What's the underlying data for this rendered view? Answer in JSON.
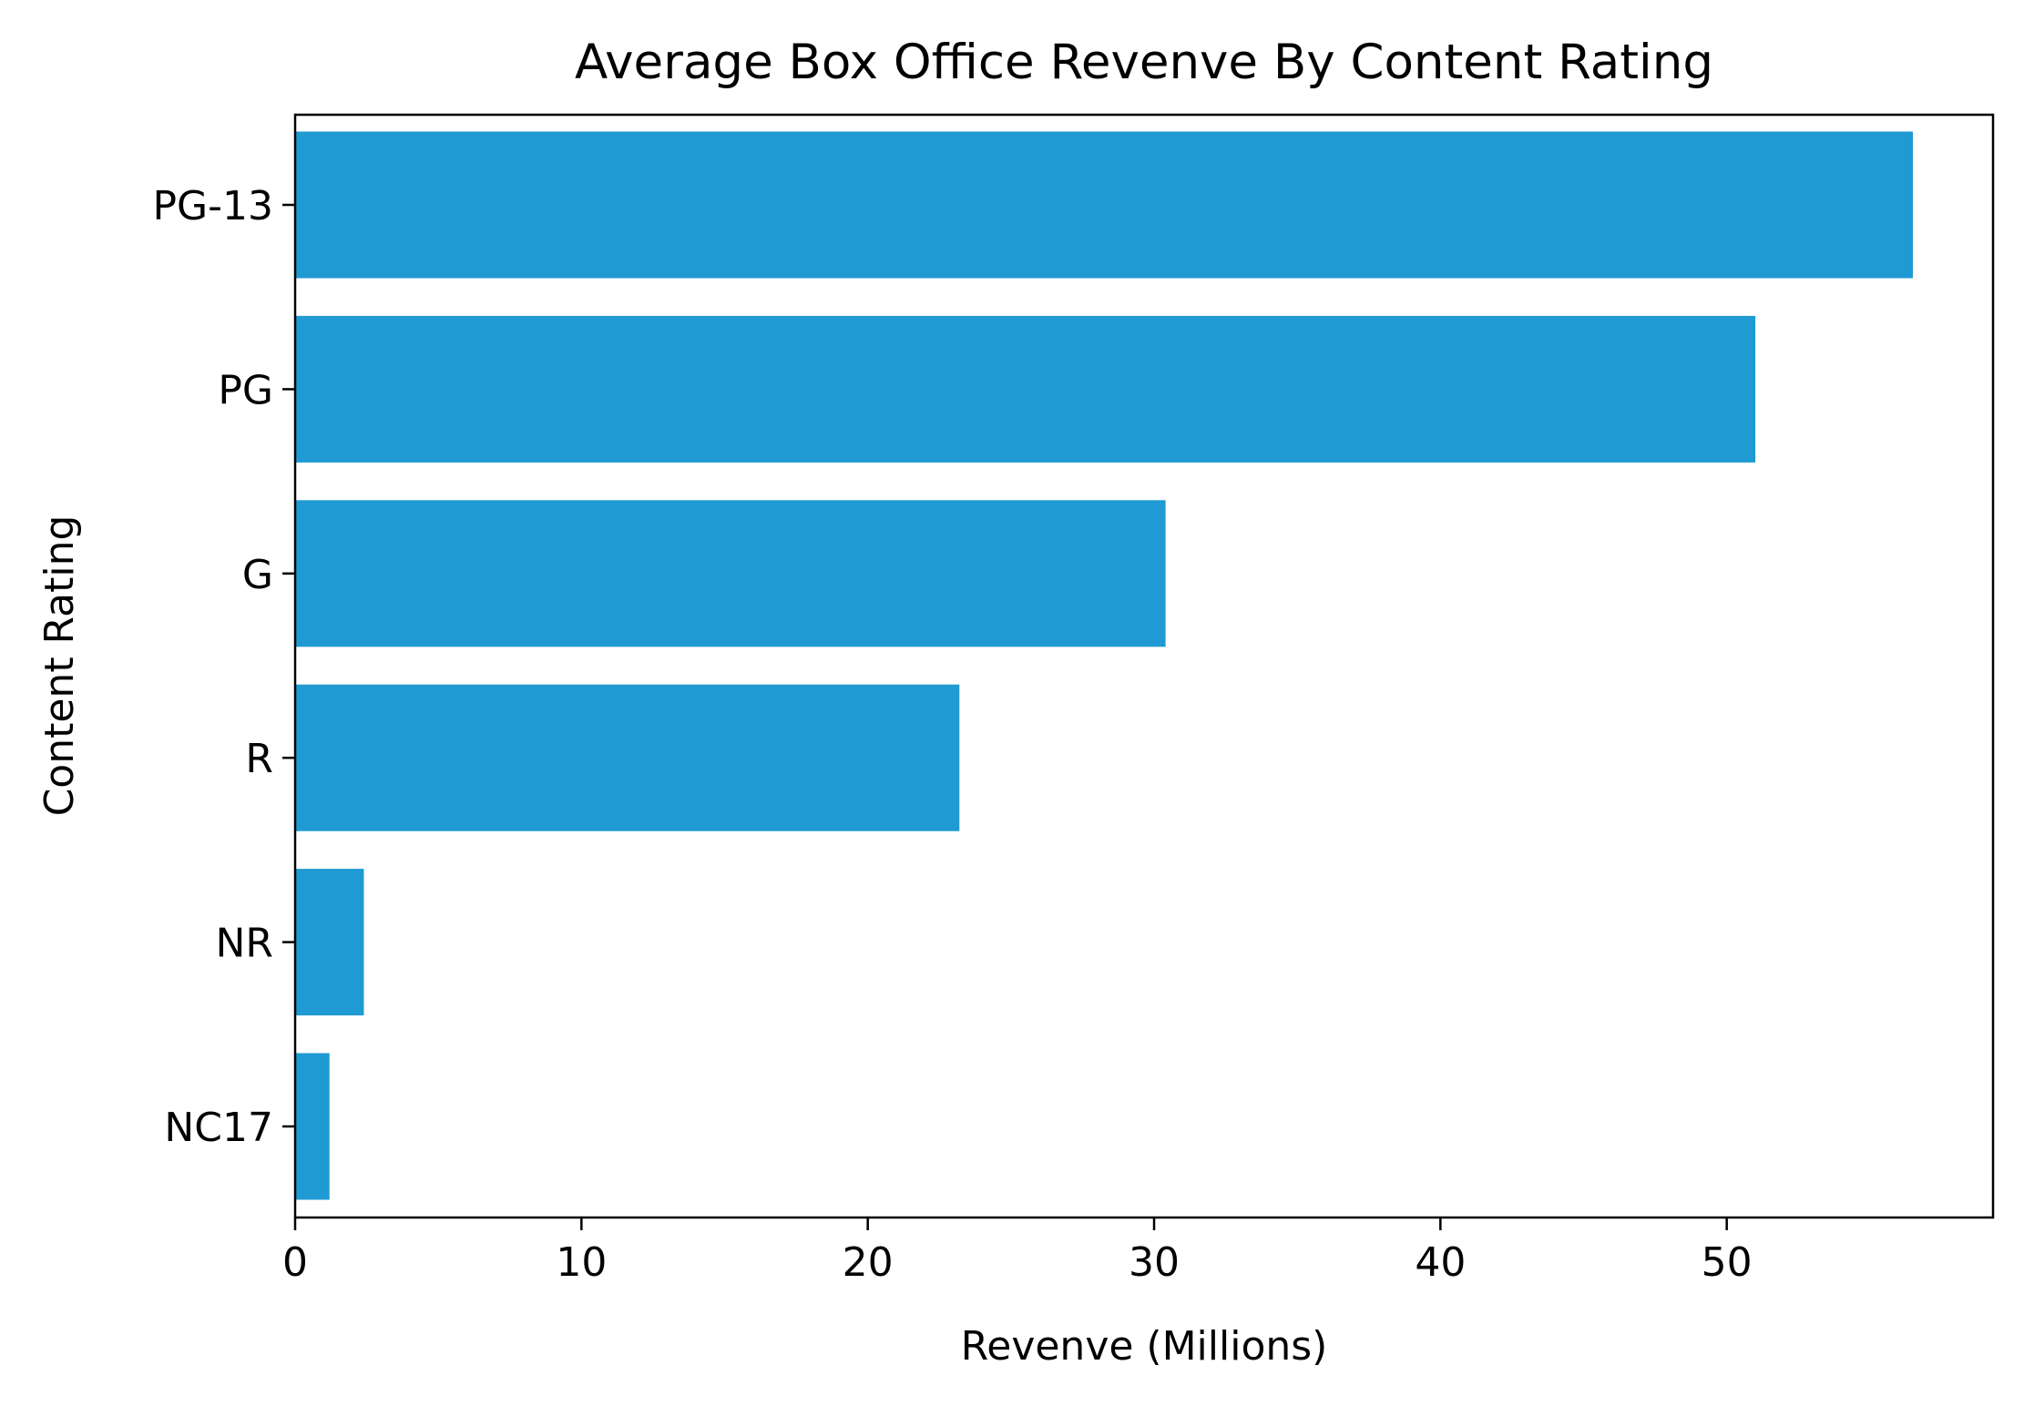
{
  "chart_data": {
    "type": "bar",
    "orientation": "horizontal",
    "title": "Average Box Office Revenve By Content Rating",
    "xlabel": "Revenve (Millions)",
    "ylabel": "Content Rating",
    "categories": [
      "PG-13",
      "PG",
      "G",
      "R",
      "NR",
      "NC17"
    ],
    "values": [
      56.5,
      51.0,
      30.4,
      23.2,
      2.4,
      1.2
    ],
    "xlim": [
      0,
      59.3
    ],
    "xticks": [
      0,
      10,
      20,
      30,
      40,
      50
    ],
    "grid": false,
    "legend": "none",
    "bar_color": "#1f9ad3"
  }
}
